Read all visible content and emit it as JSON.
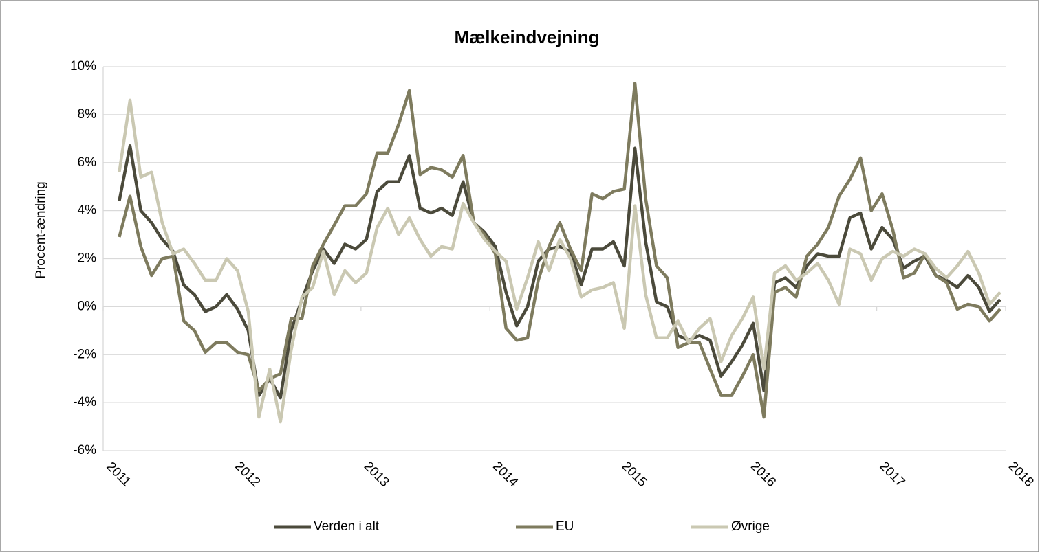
{
  "chart_data": {
    "type": "line",
    "title": "Mælkeindvejning",
    "y_label": "Procent-ændring",
    "x": [
      2011.125,
      2011.208,
      2011.292,
      2011.375,
      2011.458,
      2011.542,
      2011.625,
      2011.708,
      2011.792,
      2011.875,
      2011.958,
      2012.042,
      2012.125,
      2012.208,
      2012.292,
      2012.375,
      2012.458,
      2012.542,
      2012.625,
      2012.708,
      2012.792,
      2012.875,
      2012.958,
      2013.042,
      2013.125,
      2013.208,
      2013.292,
      2013.375,
      2013.458,
      2013.542,
      2013.625,
      2013.708,
      2013.792,
      2013.875,
      2013.958,
      2014.042,
      2014.125,
      2014.208,
      2014.292,
      2014.375,
      2014.458,
      2014.542,
      2014.625,
      2014.708,
      2014.792,
      2014.875,
      2014.958,
      2015.042,
      2015.125,
      2015.208,
      2015.292,
      2015.375,
      2015.458,
      2015.542,
      2015.625,
      2015.708,
      2015.792,
      2015.875,
      2015.958,
      2016.042,
      2016.125,
      2016.208,
      2016.292,
      2016.375,
      2016.458,
      2016.542,
      2016.625,
      2016.708,
      2016.792,
      2016.875,
      2016.958,
      2017.042,
      2017.125,
      2017.208,
      2017.292,
      2017.375,
      2017.458,
      2017.542,
      2017.625,
      2017.708,
      2017.792,
      2017.875,
      2017.958
    ],
    "series": [
      {
        "name": "Verden i alt",
        "color": "#4b4a3b",
        "values": [
          4.4,
          6.7,
          4.0,
          3.5,
          2.8,
          2.3,
          0.9,
          0.5,
          -0.2,
          0.0,
          0.5,
          -0.1,
          -1.0,
          -3.7,
          -3.0,
          -3.8,
          -1.0,
          0.3,
          1.5,
          2.4,
          1.8,
          2.6,
          2.4,
          2.8,
          4.8,
          5.2,
          5.2,
          6.3,
          4.1,
          3.9,
          4.1,
          3.8,
          5.2,
          3.5,
          3.1,
          2.5,
          0.6,
          -0.8,
          0.0,
          1.9,
          2.4,
          2.5,
          2.3,
          0.9,
          2.4,
          2.4,
          2.7,
          1.7,
          6.6,
          2.7,
          0.2,
          0.0,
          -1.2,
          -1.4,
          -1.2,
          -1.4,
          -2.9,
          -2.3,
          -1.6,
          -0.7,
          -3.5,
          1.0,
          1.2,
          0.8,
          1.7,
          2.2,
          2.1,
          2.1,
          3.7,
          3.9,
          2.4,
          3.3,
          2.8,
          1.6,
          1.9,
          2.1,
          1.3,
          1.1,
          0.8,
          1.3,
          0.8,
          -0.2,
          0.3
        ]
      },
      {
        "name": "EU",
        "color": "#7e7b5e",
        "values": [
          2.9,
          4.6,
          2.5,
          1.3,
          2.0,
          2.1,
          -0.6,
          -1.0,
          -1.9,
          -1.5,
          -1.5,
          -1.9,
          -2.0,
          -3.5,
          -3.0,
          -2.8,
          -0.5,
          -0.5,
          1.7,
          2.6,
          3.4,
          4.2,
          4.2,
          4.7,
          6.4,
          6.4,
          7.6,
          9.0,
          5.5,
          5.8,
          5.7,
          5.4,
          6.3,
          3.5,
          3.0,
          2.2,
          -0.9,
          -1.4,
          -1.3,
          1.1,
          2.5,
          3.5,
          2.4,
          1.5,
          4.7,
          4.5,
          4.8,
          4.9,
          9.3,
          4.5,
          1.7,
          1.2,
          -1.7,
          -1.5,
          -1.5,
          -2.6,
          -3.7,
          -3.7,
          -2.9,
          -2.0,
          -4.6,
          0.6,
          0.8,
          0.4,
          2.1,
          2.6,
          3.3,
          4.6,
          5.3,
          6.2,
          4.0,
          4.7,
          3.2,
          1.2,
          1.4,
          2.2,
          1.3,
          1.0,
          -0.1,
          0.1,
          0.0,
          -0.6,
          -0.1
        ]
      },
      {
        "name": "Øvrige",
        "color": "#cac8b2",
        "values": [
          5.6,
          8.6,
          5.4,
          5.6,
          3.5,
          2.2,
          2.4,
          1.8,
          1.1,
          1.1,
          2.0,
          1.5,
          -0.2,
          -4.6,
          -2.6,
          -4.8,
          -1.8,
          0.4,
          0.8,
          2.3,
          0.5,
          1.5,
          1.0,
          1.4,
          3.3,
          4.1,
          3.0,
          3.7,
          2.8,
          2.1,
          2.5,
          2.4,
          4.3,
          3.5,
          2.8,
          2.3,
          1.9,
          -0.1,
          1.2,
          2.7,
          1.5,
          2.8,
          2.0,
          0.4,
          0.7,
          0.8,
          1.0,
          -0.9,
          4.2,
          0.5,
          -1.3,
          -1.3,
          -0.6,
          -1.5,
          -0.9,
          -0.5,
          -2.3,
          -1.2,
          -0.5,
          0.4,
          -2.6,
          1.4,
          1.7,
          1.1,
          1.4,
          1.8,
          1.1,
          0.1,
          2.4,
          2.2,
          1.1,
          2.0,
          2.3,
          2.1,
          2.4,
          2.2,
          1.6,
          1.2,
          1.7,
          2.3,
          1.4,
          0.1,
          0.6
        ]
      }
    ],
    "xlim": [
      2011,
      2018
    ],
    "xticks": [
      2011,
      2012,
      2013,
      2014,
      2015,
      2016,
      2017,
      2018
    ],
    "ylim": [
      -6,
      10
    ],
    "yticks": [
      {
        "value": -6,
        "label": "-6%"
      },
      {
        "value": -4,
        "label": "-4%"
      },
      {
        "value": -2,
        "label": "-2%"
      },
      {
        "value": 0,
        "label": "0%"
      },
      {
        "value": 2,
        "label": "2%"
      },
      {
        "value": 4,
        "label": "4%"
      },
      {
        "value": 6,
        "label": "6%"
      },
      {
        "value": 8,
        "label": "8%"
      },
      {
        "value": 10,
        "label": "10%"
      }
    ],
    "grid": true,
    "legend": "bottom"
  }
}
